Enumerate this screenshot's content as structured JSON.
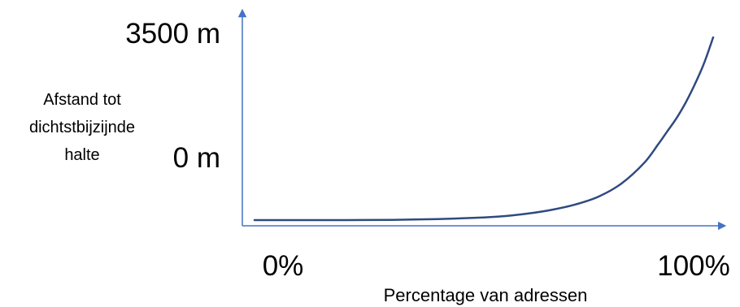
{
  "chart_data": {
    "type": "line",
    "title": "",
    "ylabel_lines": [
      "Afstand tot",
      "dichtstbijzijnde",
      "halte"
    ],
    "xlabel": "Percentage van adressen",
    "x_tick_labels": [
      "0%",
      "100%"
    ],
    "y_tick_labels": [
      "3500 m",
      "0 m"
    ],
    "grid": false,
    "legend": "none",
    "colors": {
      "axis": "#4472C4",
      "line": "#2F4A80",
      "text": "#000000"
    },
    "series": [
      {
        "x": [
          0,
          10,
          20,
          30,
          40,
          50,
          55,
          60,
          65,
          70,
          75,
          80,
          85,
          88,
          90,
          92,
          94,
          96,
          98,
          100
        ],
        "y": [
          0,
          0,
          0,
          5,
          20,
          50,
          80,
          130,
          200,
          300,
          450,
          700,
          1100,
          1450,
          1700,
          1950,
          2250,
          2600,
          3000,
          3500
        ]
      }
    ]
  }
}
